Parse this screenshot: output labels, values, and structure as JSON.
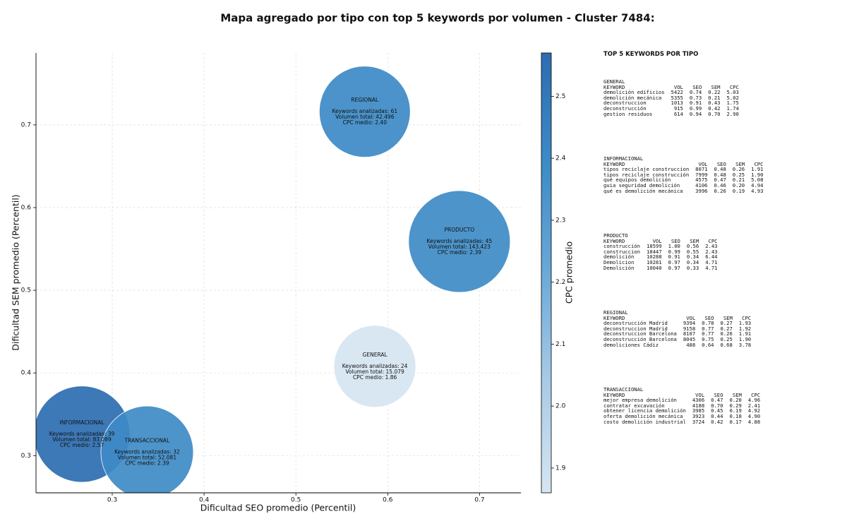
{
  "chart_data": {
    "type": "scatter",
    "title": "Mapa agregado por tipo con top 5 keywords por volumen - Cluster 7484:",
    "xlabel": "Dificultad SEO promedio (Percentil)",
    "ylabel": "Dificultad SEM promedio (Percentil)",
    "colorbar_label": "CPC promedio",
    "labels": [
      "REGIONAL",
      "PRODUCTO",
      "GENERAL",
      "INFORMACIONAL",
      "TRANSACCIONAL"
    ],
    "x": [
      0.575,
      0.678,
      0.586,
      0.267,
      0.338
    ],
    "values": [
      0.716,
      0.559,
      0.408,
      0.326,
      0.304
    ],
    "volume": [
      42496,
      143423,
      15079,
      83089,
      52081
    ],
    "cpc": [
      2.4,
      2.39,
      1.86,
      2.57,
      2.39
    ],
    "annotations": [
      [
        "Keywords analizadas: 61",
        "Volumen total: 42.496",
        "CPC medio: 2.40"
      ],
      [
        "Keywords analizadas: 45",
        "Volumen total: 143.423",
        "CPC medio: 2.39"
      ],
      [
        "Keywords analizadas: 24",
        "Volumen total: 15.079",
        "CPC medio: 1.86"
      ],
      [
        "Keywords analizadas: 39",
        "Volumen total: 83.089",
        "CPC medio: 2.57"
      ],
      [
        "Keywords analizadas: 32",
        "Volumen total: 52.081",
        "CPC medio: 2.39"
      ]
    ],
    "xlim": [
      0.217,
      0.745
    ],
    "ylim": [
      0.255,
      0.787
    ],
    "xticks": [
      0.3,
      0.4,
      0.5,
      0.6,
      0.7
    ],
    "yticks": [
      0.3,
      0.4,
      0.5,
      0.6,
      0.7
    ],
    "clim": [
      1.86,
      2.57
    ],
    "cticks": [
      1.9,
      {
        "value": 2,
        "label": "2.0"
      },
      2.1,
      2.2,
      2.3,
      2.4,
      2.5
    ],
    "colormap": [
      "#d6e5f2",
      "#a9cbe6",
      "#6aa9d8",
      "#3d8bc6",
      "#2c6db1"
    ],
    "grid": true
  },
  "keyword_panel": {
    "title": "TOP 5 KEYWORDS POR TIPO",
    "columns": [
      "KEYWORD",
      "VOL",
      "SEO",
      "SEM",
      "CPC"
    ],
    "sections": [
      {
        "name": "GENERAL",
        "rows": [
          [
            "demolición edificios",
            "5422",
            "0.74",
            "0.22",
            "5.03"
          ],
          [
            "demolición mecánica",
            "5355",
            "0.73",
            "0.21",
            "5.02"
          ],
          [
            "deconstruccion",
            "1013",
            "0.91",
            "0.43",
            "1.75"
          ],
          [
            "deconstrucción",
            "915",
            "0.99",
            "0.42",
            "1.74"
          ],
          [
            "gestion residuos",
            "614",
            "0.94",
            "0.70",
            "2.90"
          ]
        ]
      },
      {
        "name": "INFORMACIONAL",
        "rows": [
          [
            "tipos reciclaje construccion",
            "8071",
            "0.48",
            "0.26",
            "1.91"
          ],
          [
            "tipos reciclaje construcción",
            "7999",
            "0.48",
            "0.25",
            "1.90"
          ],
          [
            "qué equipos demolición",
            "4575",
            "0.47",
            "0.21",
            "5.08"
          ],
          [
            "guia seguridad demolición",
            "4106",
            "0.46",
            "0.20",
            "4.94"
          ],
          [
            "qué es demolición mecánica",
            "3996",
            "0.26",
            "0.19",
            "4.93"
          ]
        ]
      },
      {
        "name": "PRODUCTO",
        "rows": [
          [
            "construcción",
            "18599",
            "1.00",
            "0.56",
            "2.43"
          ],
          [
            "construccion",
            "18447",
            "0.99",
            "0.55",
            "2.43"
          ],
          [
            "demolición",
            "10288",
            "0.91",
            "0.34",
            "6.44"
          ],
          [
            "Demolicion",
            "10281",
            "0.97",
            "0.34",
            "4.71"
          ],
          [
            "Demolición",
            "10040",
            "0.97",
            "0.33",
            "4.71"
          ]
        ]
      },
      {
        "name": "REGIONAL",
        "rows": [
          [
            "deconstrucción Madrid",
            "9394",
            "0.78",
            "0.27",
            "1.93"
          ],
          [
            "deconstruccion Madrid",
            "9158",
            "0.77",
            "0.27",
            "1.92"
          ],
          [
            "deconstruccion Barcelona",
            "8107",
            "0.77",
            "0.26",
            "1.91"
          ],
          [
            "deconstrucción Barcelona",
            "8045",
            "0.75",
            "0.25",
            "1.90"
          ],
          [
            "demoliciones Cádiz",
            "488",
            "0.64",
            "0.68",
            "3.78"
          ]
        ]
      },
      {
        "name": "TRANSACCIONAL",
        "rows": [
          [
            "mejor empresa demolición",
            "4306",
            "0.47",
            "0.20",
            "4.96"
          ],
          [
            "contratar excavación",
            "4188",
            "0.70",
            "0.29",
            "2.41"
          ],
          [
            "obtener licencia demolición",
            "3985",
            "0.45",
            "0.19",
            "4.92"
          ],
          [
            "oferta demolición mecánica",
            "3923",
            "0.44",
            "0.18",
            "4.90"
          ],
          [
            "costo demolición industrial",
            "3724",
            "0.42",
            "0.17",
            "4.88"
          ]
        ]
      }
    ]
  }
}
